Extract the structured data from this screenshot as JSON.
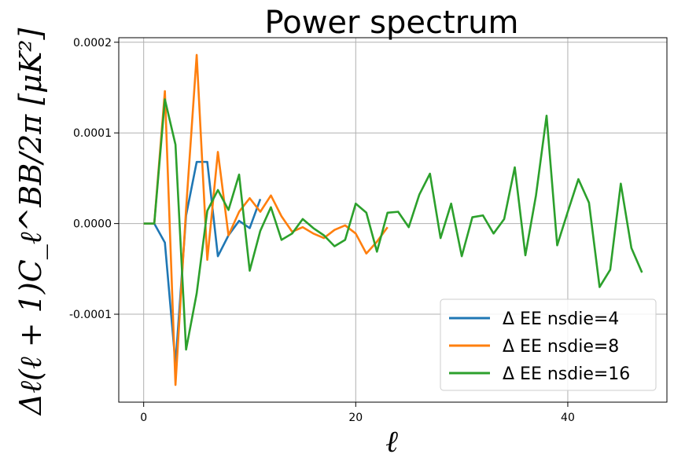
{
  "chart_data": {
    "type": "line",
    "title": "Power spectrum",
    "xlabel": "ℓ",
    "ylabel": "Δℓ(ℓ + 1)C_ℓ^BB/2π [μK²]",
    "xlim": [
      -2.35,
      49.35
    ],
    "ylim": [
      -0.000197,
      0.000205
    ],
    "grid": true,
    "legend_position": "bottom-right",
    "x_ticks": [
      {
        "value": 0,
        "label": "0"
      },
      {
        "value": 20,
        "label": "20"
      },
      {
        "value": 40,
        "label": "40"
      }
    ],
    "y_ticks": [
      {
        "value": 0.0002,
        "label": "0.0002"
      },
      {
        "value": 0.0001,
        "label": "0.0001"
      },
      {
        "value": 0.0,
        "label": "0.0000"
      },
      {
        "value": -0.0001,
        "label": "-0.0001"
      }
    ],
    "series": [
      {
        "name": "Δ EE nsdie=4",
        "color": "#1f77b4",
        "x": [
          0,
          1,
          2,
          3,
          4,
          5,
          6,
          7,
          8,
          9,
          10,
          11
        ],
        "values": [
          0.0,
          0.0,
          -2.1e-05,
          -0.000155,
          9e-06,
          6.8e-05,
          6.8e-05,
          -3.6e-05,
          -1.3e-05,
          3e-06,
          -5e-06,
          2.7e-05
        ]
      },
      {
        "name": "Δ EE nsdie=8",
        "color": "#ff7f0e",
        "x": [
          0,
          1,
          2,
          3,
          4,
          5,
          6,
          7,
          8,
          9,
          10,
          11,
          12,
          13,
          14,
          15,
          16,
          17,
          18,
          19,
          20,
          21,
          22,
          23
        ],
        "values": [
          0.0,
          0.0,
          0.000146,
          -0.000178,
          1.6e-05,
          0.000186,
          -4e-05,
          7.9e-05,
          -1.3e-05,
          1.3e-05,
          2.8e-05,
          1.3e-05,
          3.1e-05,
          8e-06,
          -9e-06,
          -4e-06,
          -1.1e-05,
          -1.6e-05,
          -7e-06,
          -2e-06,
          -1.1e-05,
          -3.3e-05,
          -2e-05,
          -4e-06
        ]
      },
      {
        "name": "Δ EE nsdie=16",
        "color": "#2ca02c",
        "x": [
          0,
          1,
          2,
          3,
          4,
          5,
          6,
          7,
          8,
          9,
          10,
          11,
          12,
          13,
          14,
          15,
          16,
          17,
          18,
          19,
          20,
          21,
          22,
          23,
          24,
          25,
          26,
          27,
          28,
          29,
          30,
          31,
          32,
          33,
          34,
          35,
          36,
          37,
          38,
          39,
          40,
          41,
          42,
          43,
          44,
          45,
          46,
          47
        ],
        "values": [
          0.0,
          0.0,
          0.000137,
          8.7e-05,
          -0.000139,
          -7.7e-05,
          1.4e-05,
          3.7e-05,
          1.5e-05,
          5.4e-05,
          -5.2e-05,
          -8e-06,
          1.8e-05,
          -1.8e-05,
          -1.1e-05,
          5e-06,
          -5e-06,
          -1.3e-05,
          -2.5e-05,
          -1.8e-05,
          2.2e-05,
          1.2e-05,
          -3.1e-05,
          1.2e-05,
          1.3e-05,
          -4e-06,
          3.2e-05,
          5.5e-05,
          -1.6e-05,
          2.2e-05,
          -3.6e-05,
          7e-06,
          9e-06,
          -1.1e-05,
          5e-06,
          6.2e-05,
          -3.5e-05,
          3.1e-05,
          0.000119,
          -2.4e-05,
          1.3e-05,
          4.9e-05,
          2.3e-05,
          -7e-05,
          -5.1e-05,
          4.4e-05,
          -2.7e-05,
          -5.4e-05
        ]
      }
    ]
  }
}
